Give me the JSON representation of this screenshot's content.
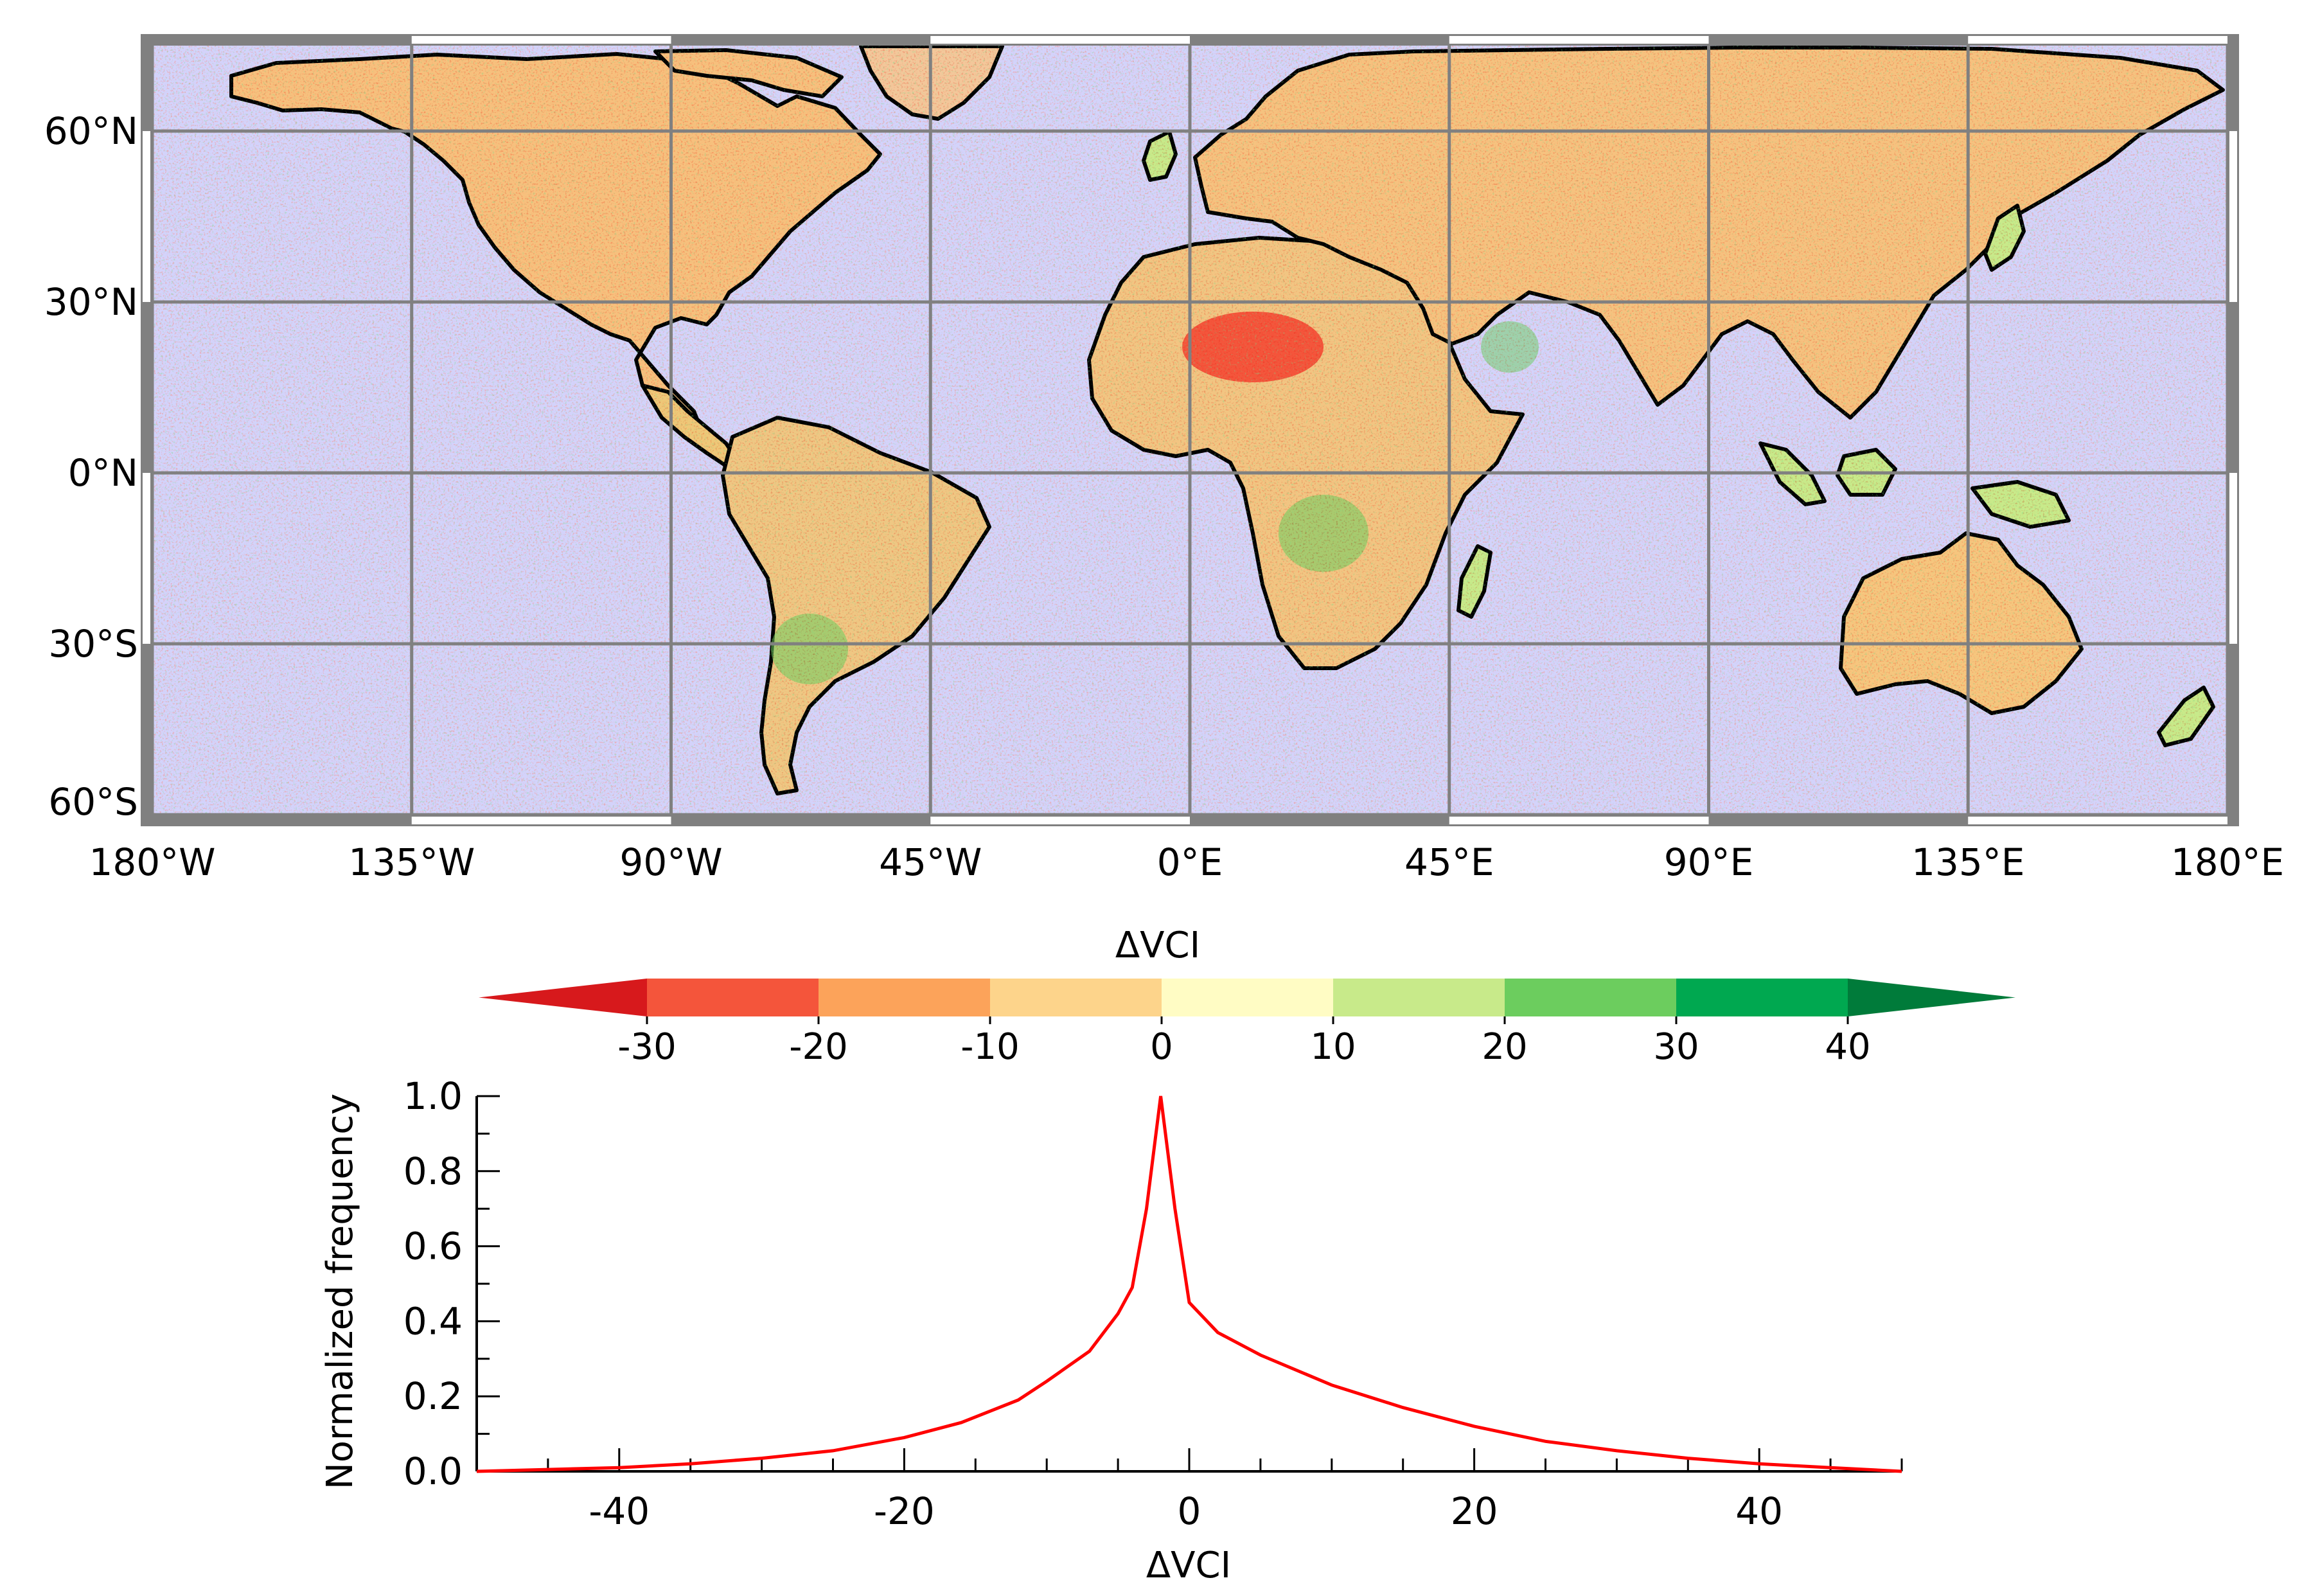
{
  "map": {
    "lat_labels": [
      "60°N",
      "30°N",
      "0°N",
      "30°S",
      "60°S"
    ],
    "lon_labels": [
      "180°W",
      "135°W",
      "90°W",
      "45°W",
      "0°E",
      "45°E",
      "90°E",
      "135°E",
      "180°E"
    ],
    "extent": {
      "lon": [
        -180,
        180
      ],
      "lat": [
        -60,
        75
      ]
    },
    "colors": {
      "ocean": "#d3d3fb",
      "grid": "#808080",
      "frame": "#808080",
      "coast": "#000000"
    }
  },
  "colorbar": {
    "label": "ΔVCI",
    "tick_labels": [
      "-30",
      "-20",
      "-10",
      "0",
      "10",
      "20",
      "30",
      "40"
    ],
    "colors": [
      "#d7191c",
      "#f4553b",
      "#fca35a",
      "#fdd48b",
      "#fffcc4",
      "#c8ea8a",
      "#6ccd5e",
      "#00a850",
      "#007b3a"
    ]
  },
  "chart_data": {
    "type": "line",
    "xlabel": "ΔVCI",
    "ylabel": "Normalized frequency",
    "xlim": [
      -50,
      50
    ],
    "ylim": [
      0,
      1.0
    ],
    "x_tick_labels": [
      "-40",
      "-20",
      "0",
      "20",
      "40"
    ],
    "y_tick_labels": [
      "0.0",
      "0.2",
      "0.4",
      "0.6",
      "0.8",
      "1.0"
    ],
    "series": [
      {
        "color": "#ff0000",
        "x": [
          -50,
          -45,
          -40,
          -35,
          -30,
          -25,
          -20,
          -16,
          -12,
          -10,
          -7,
          -5,
          -4,
          -3,
          -2,
          -1,
          0,
          2,
          5,
          10,
          15,
          20,
          25,
          30,
          35,
          40,
          45,
          50
        ],
        "y": [
          0.0,
          0.005,
          0.01,
          0.02,
          0.035,
          0.055,
          0.09,
          0.13,
          0.19,
          0.24,
          0.32,
          0.42,
          0.49,
          0.7,
          1.0,
          0.7,
          0.45,
          0.37,
          0.31,
          0.23,
          0.17,
          0.12,
          0.08,
          0.055,
          0.035,
          0.02,
          0.01,
          0.0
        ]
      }
    ]
  }
}
